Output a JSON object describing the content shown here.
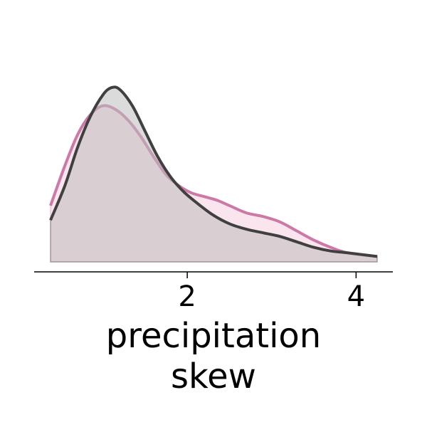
{
  "chart_data": {
    "type": "area",
    "xlabel": [
      "precipitation",
      "skew"
    ],
    "ylabel": "",
    "xlim": [
      0.3,
      4.4
    ],
    "ylim": [
      0,
      1.0
    ],
    "x_ticks": [
      2,
      4
    ],
    "x_tick_labels": [
      "2",
      "4"
    ],
    "grid": false,
    "legend": "none",
    "series": [
      {
        "color": "#cc79a7",
        "fill": "#f5d0e0",
        "x": [
          0.38,
          0.55,
          0.7,
          0.85,
          1.0,
          1.15,
          1.3,
          1.45,
          1.6,
          1.75,
          1.9,
          2.05,
          2.2,
          2.35,
          2.5,
          2.7,
          2.9,
          3.1,
          3.3,
          3.5,
          3.7,
          3.9,
          4.25
        ],
        "y": [
          0.31,
          0.53,
          0.7,
          0.81,
          0.86,
          0.84,
          0.78,
          0.69,
          0.58,
          0.48,
          0.42,
          0.38,
          0.36,
          0.34,
          0.31,
          0.27,
          0.25,
          0.22,
          0.17,
          0.12,
          0.08,
          0.05,
          0.03
        ]
      },
      {
        "color": "#404040",
        "fill": "#bdbdbd",
        "x": [
          0.38,
          0.55,
          0.7,
          0.85,
          1.0,
          1.1,
          1.2,
          1.35,
          1.5,
          1.65,
          1.8,
          1.95,
          2.1,
          2.3,
          2.5,
          2.7,
          2.9,
          3.1,
          3.3,
          3.5,
          3.7,
          3.9,
          4.25
        ],
        "y": [
          0.23,
          0.42,
          0.63,
          0.8,
          0.92,
          0.96,
          0.95,
          0.86,
          0.72,
          0.58,
          0.47,
          0.39,
          0.33,
          0.26,
          0.21,
          0.18,
          0.16,
          0.14,
          0.11,
          0.08,
          0.06,
          0.05,
          0.03
        ]
      }
    ]
  }
}
